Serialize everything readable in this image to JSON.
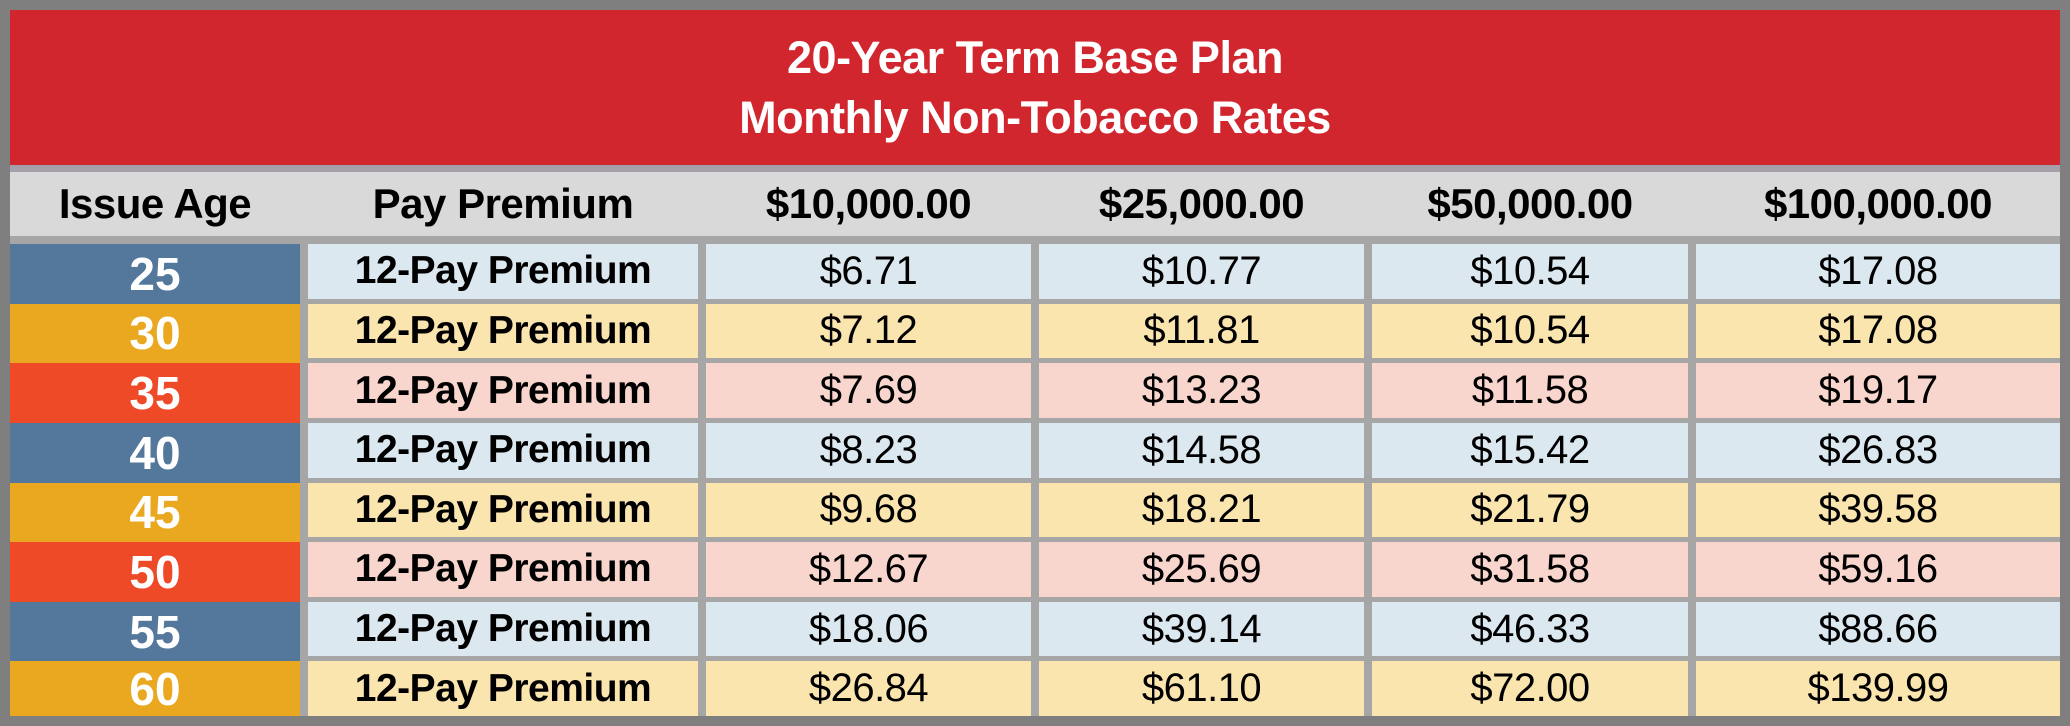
{
  "title": {
    "line1": "20-Year Term Base Plan",
    "line2": "Monthly Non-Tobacco Rates"
  },
  "table": {
    "columns": [
      "Issue Age",
      "Pay Premium",
      "$10,000.00",
      "$25,000.00",
      "$50,000.00",
      "$100,000.00"
    ],
    "rows": [
      {
        "age": "25",
        "premium_label": "12-Pay Premium",
        "values": [
          "$6.71",
          "$10.77",
          "$10.54",
          "$17.08"
        ]
      },
      {
        "age": "30",
        "premium_label": "12-Pay Premium",
        "values": [
          "$7.12",
          "$11.81",
          "$10.54",
          "$17.08"
        ]
      },
      {
        "age": "35",
        "premium_label": "12-Pay Premium",
        "values": [
          "$7.69",
          "$13.23",
          "$11.58",
          "$19.17"
        ]
      },
      {
        "age": "40",
        "premium_label": "12-Pay Premium",
        "values": [
          "$8.23",
          "$14.58",
          "$15.42",
          "$26.83"
        ]
      },
      {
        "age": "45",
        "premium_label": "12-Pay Premium",
        "values": [
          "$9.68",
          "$18.21",
          "$21.79",
          "$39.58"
        ]
      },
      {
        "age": "50",
        "premium_label": "12-Pay Premium",
        "values": [
          "$12.67",
          "$25.69",
          "$31.58",
          "$59.16"
        ]
      },
      {
        "age": "55",
        "premium_label": "12-Pay Premium",
        "values": [
          "$18.06",
          "$39.14",
          "$46.33",
          "$88.66"
        ]
      },
      {
        "age": "60",
        "premium_label": "12-Pay Premium",
        "values": [
          "$26.84",
          "$61.10",
          "$72.00",
          "$139.99"
        ]
      }
    ]
  },
  "colors": {
    "frame_gray": "#7F7F7F",
    "banner_red": "#D2262F",
    "title_text": "#FFFFFF",
    "header_row_bg": "#D9D9D9",
    "grid_gap_gray": "#A6A6A6",
    "age_blue": "#54789B",
    "age_gold": "#E9A81F",
    "age_red": "#EE4A28",
    "row_light_blue": "#DCE8F0",
    "row_cream": "#FBE5AF",
    "row_pink": "#F8D5CD",
    "body_text": "#000000"
  },
  "chart_data": {
    "type": "table",
    "title": "20-Year Term Base Plan Monthly Non-Tobacco Rates",
    "columns": [
      "Issue Age",
      "Pay Premium",
      "$10,000.00",
      "$25,000.00",
      "$50,000.00",
      "$100,000.00"
    ],
    "rows": [
      [
        "25",
        "12-Pay Premium",
        6.71,
        10.77,
        10.54,
        17.08
      ],
      [
        "30",
        "12-Pay Premium",
        7.12,
        11.81,
        10.54,
        17.08
      ],
      [
        "35",
        "12-Pay Premium",
        7.69,
        13.23,
        11.58,
        19.17
      ],
      [
        "40",
        "12-Pay Premium",
        8.23,
        14.58,
        15.42,
        26.83
      ],
      [
        "45",
        "12-Pay Premium",
        9.68,
        18.21,
        21.79,
        39.58
      ],
      [
        "50",
        "12-Pay Premium",
        12.67,
        25.69,
        31.58,
        59.16
      ],
      [
        "55",
        "12-Pay Premium",
        18.06,
        39.14,
        46.33,
        88.66
      ],
      [
        "60",
        "12-Pay Premium",
        26.84,
        61.1,
        72.0,
        139.99
      ]
    ],
    "row_theme_cycle": [
      "blue",
      "gold",
      "red"
    ]
  }
}
